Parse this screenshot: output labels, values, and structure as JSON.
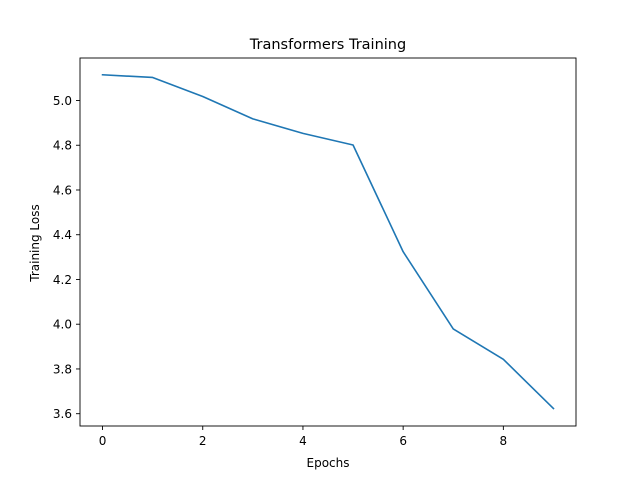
{
  "chart_data": {
    "type": "line",
    "title": "Transformers Training",
    "xlabel": "Epochs",
    "ylabel": "Training Loss",
    "xlim": [
      -0.45,
      9.45
    ],
    "ylim": [
      3.545,
      5.19
    ],
    "grid": false,
    "x_ticks": [
      0,
      2,
      4,
      6,
      8
    ],
    "x_tick_labels": [
      "0",
      "2",
      "4",
      "6",
      "8"
    ],
    "y_ticks": [
      3.6,
      3.8,
      4.0,
      4.2,
      4.4,
      4.6,
      4.8,
      5.0
    ],
    "y_tick_labels": [
      "3.6",
      "3.8",
      "4.0",
      "4.2",
      "4.4",
      "4.6",
      "4.8",
      "5.0"
    ],
    "series": [
      {
        "color": "#1f77b4",
        "x": [
          0,
          1,
          2,
          3,
          4,
          5,
          6,
          7,
          8,
          9
        ],
        "y": [
          5.115,
          5.103,
          5.018,
          4.918,
          4.853,
          4.801,
          4.324,
          3.979,
          3.843,
          3.623
        ]
      }
    ]
  }
}
